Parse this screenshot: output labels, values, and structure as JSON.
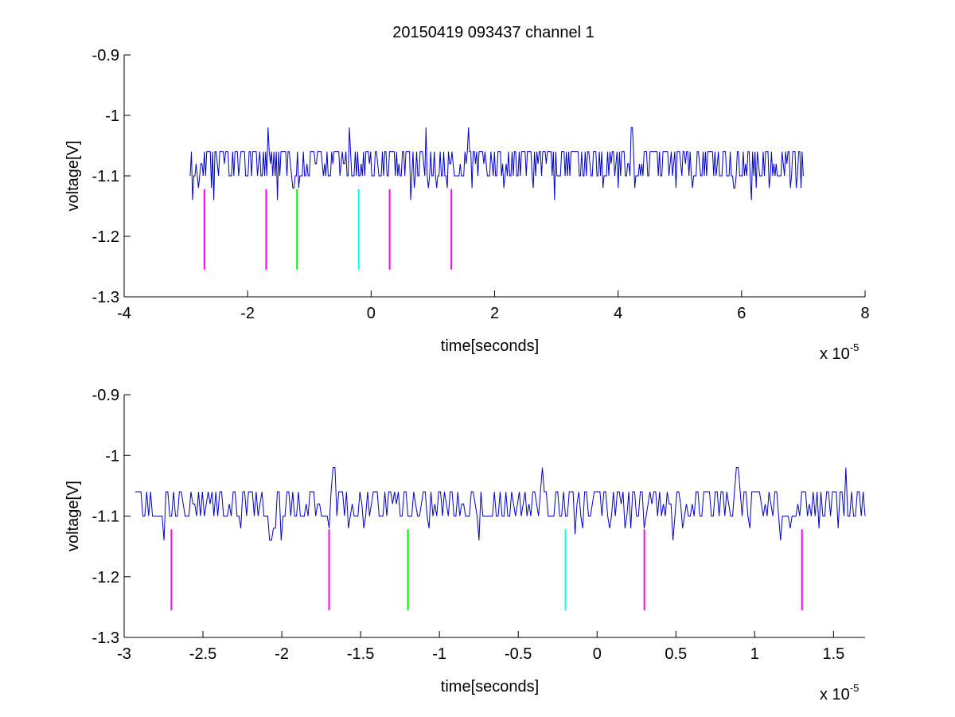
{
  "figure": {
    "title": "20150419 093437 channel 1",
    "background": "#ffffff",
    "axis_color": "#000000",
    "trace_color": "#0000cc"
  },
  "chart_data": [
    {
      "type": "line",
      "xlabel": "time[seconds]",
      "ylabel": "voltage[V]",
      "x_multiplier_label": "x 10",
      "x_multiplier_exponent": "-5",
      "xlim": [
        -4,
        8
      ],
      "ylim": [
        -1.3,
        -0.9
      ],
      "x_ticks": [
        -4,
        -2,
        0,
        2,
        4,
        6,
        8
      ],
      "y_ticks": [
        -1.3,
        -1.2,
        -1.1,
        -1.0,
        -0.9
      ],
      "x_tick_labels": [
        "-4",
        "-2",
        "0",
        "2",
        "4",
        "6",
        "8"
      ],
      "y_tick_labels": [
        "-1.3",
        "-1.2",
        "-1.1",
        "-1",
        "-0.9"
      ],
      "grid": false,
      "series": [
        {
          "style": "quantized-noise",
          "x_range": [
            -2.93,
            7.0
          ],
          "baseline": -1.1,
          "levels": [
            -1.14,
            -1.12,
            -1.1,
            -1.08,
            -1.06,
            -1.02
          ],
          "spikes_up": [
            [
              -1.67,
              -1.02
            ],
            [
              -0.35,
              -1.02
            ],
            [
              0.89,
              -1.02
            ],
            [
              1.58,
              -1.02
            ],
            [
              4.22,
              -1.02
            ]
          ],
          "color": "#0000cc"
        }
      ],
      "markers": [
        {
          "x": -2.7,
          "y": [
            -1.255,
            -1.122
          ],
          "color": "#ff00ff"
        },
        {
          "x": -1.7,
          "y": [
            -1.255,
            -1.122
          ],
          "color": "#ff00ff"
        },
        {
          "x": -1.2,
          "y": [
            -1.255,
            -1.122
          ],
          "color": "#00ee00"
        },
        {
          "x": -0.2,
          "y": [
            -1.255,
            -1.122
          ],
          "color": "#00ffff"
        },
        {
          "x": 0.3,
          "y": [
            -1.255,
            -1.122
          ],
          "color": "#ff00ff"
        },
        {
          "x": 1.3,
          "y": [
            -1.255,
            -1.122
          ],
          "color": "#ff00ff"
        }
      ]
    },
    {
      "type": "line",
      "xlabel": "time[seconds]",
      "ylabel": "voltage[V]",
      "x_multiplier_label": "x 10",
      "x_multiplier_exponent": "-5",
      "xlim": [
        -3.0,
        1.7
      ],
      "ylim": [
        -1.3,
        -0.9
      ],
      "x_ticks": [
        -3,
        -2.5,
        -2,
        -1.5,
        -1,
        -0.5,
        0,
        0.5,
        1,
        1.5
      ],
      "y_ticks": [
        -1.3,
        -1.2,
        -1.1,
        -1.0,
        -0.9
      ],
      "x_tick_labels": [
        "-3",
        "-2.5",
        "-2",
        "-1.5",
        "-1",
        "-0.5",
        "0",
        "0.5",
        "1",
        "1.5"
      ],
      "y_tick_labels": [
        "-1.3",
        "-1.2",
        "-1.1",
        "-1",
        "-0.9"
      ],
      "grid": false,
      "series": [
        {
          "style": "quantized-noise",
          "x_range": [
            -2.93,
            1.7
          ],
          "baseline": -1.1,
          "levels": [
            -1.14,
            -1.12,
            -1.1,
            -1.08,
            -1.06,
            -1.02
          ],
          "spikes_up": [
            [
              -1.67,
              -1.02
            ],
            [
              -0.35,
              -1.02
            ],
            [
              0.89,
              -1.02
            ],
            [
              1.58,
              -1.02
            ]
          ],
          "spikes_down": [
            [
              -2.75,
              -1.14
            ],
            [
              -2.07,
              -1.14
            ],
            [
              -2.0,
              -1.14
            ],
            [
              -0.75,
              -1.14
            ],
            [
              -0.14,
              -1.13
            ],
            [
              0.48,
              -1.14
            ],
            [
              1.16,
              -1.14
            ]
          ],
          "color": "#0000cc"
        }
      ],
      "markers": [
        {
          "x": -2.7,
          "y": [
            -1.255,
            -1.122
          ],
          "color": "#ff00ff"
        },
        {
          "x": -1.7,
          "y": [
            -1.255,
            -1.122
          ],
          "color": "#ff00ff"
        },
        {
          "x": -1.2,
          "y": [
            -1.255,
            -1.122
          ],
          "color": "#00ee00"
        },
        {
          "x": -0.2,
          "y": [
            -1.255,
            -1.122
          ],
          "color": "#00ffff"
        },
        {
          "x": 0.3,
          "y": [
            -1.255,
            -1.122
          ],
          "color": "#ff00ff"
        },
        {
          "x": 1.3,
          "y": [
            -1.255,
            -1.122
          ],
          "color": "#ff00ff"
        }
      ]
    }
  ]
}
